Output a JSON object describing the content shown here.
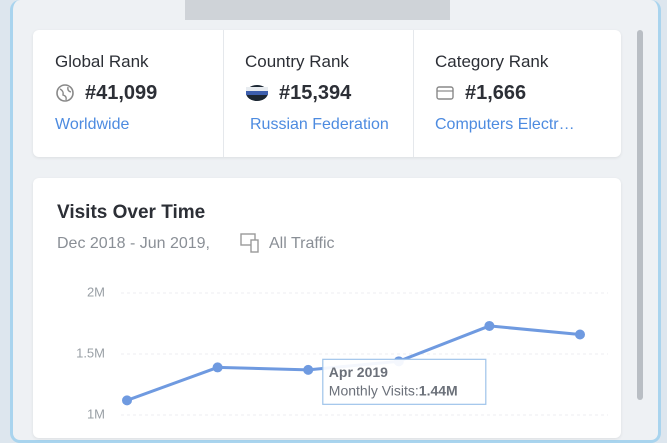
{
  "ranks": [
    {
      "label": "Global Rank",
      "value": "#41,099",
      "link": "Worldwide"
    },
    {
      "label": "Country Rank",
      "value": "#15,394",
      "link": "Russian Federation"
    },
    {
      "label": "Category Rank",
      "value": "#1,666",
      "link": "Computers Electr…"
    }
  ],
  "chart_data": {
    "type": "line",
    "title": "Visits Over Time",
    "subtitle": "Dec 2018 - Jun 2019,",
    "traffic": "All Traffic",
    "categories": [
      null,
      null,
      null,
      "Apr 2019",
      null,
      null
    ],
    "series": [
      {
        "name": "Monthly Visits:",
        "color": "#6f9ae0",
        "values": [
          1120000,
          1390000,
          1370000,
          1440000,
          1730000,
          1660000
        ],
        "value_labels": [
          null,
          null,
          null,
          "1.44M",
          null,
          null
        ]
      }
    ],
    "ylim": [
      1000000,
      2000000
    ],
    "yticks": [
      {
        "value": 1000000,
        "label": "1M"
      },
      {
        "value": 1500000,
        "label": "1.5M"
      },
      {
        "value": 2000000,
        "label": "2M"
      }
    ],
    "grid": true
  }
}
